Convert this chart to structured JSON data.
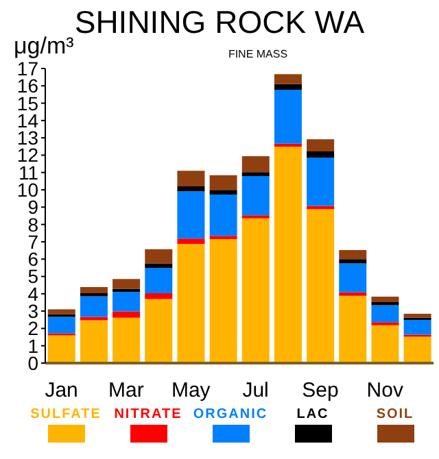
{
  "chart_data": {
    "type": "bar",
    "title": "SHINING ROCK WA",
    "subtitle": "FINE MASS",
    "ylabel": "μg/m³",
    "categories": [
      "Jan",
      null,
      "Mar",
      null,
      "May",
      null,
      "Jul",
      null,
      "Sep",
      null,
      "Nov",
      null
    ],
    "stacked": true,
    "series": [
      {
        "name": "SULFATE",
        "color": "#ffb400",
        "values": [
          1.6,
          2.47,
          2.62,
          3.7,
          6.88,
          7.16,
          8.35,
          12.48,
          8.89,
          3.88,
          2.18,
          1.52
        ]
      },
      {
        "name": "NITRATE",
        "color": "#ff0000",
        "values": [
          0.12,
          0.2,
          0.36,
          0.33,
          0.31,
          0.18,
          0.18,
          0.18,
          0.18,
          0.2,
          0.18,
          0.12
        ]
      },
      {
        "name": "ORGANIC",
        "color": "#0080ff",
        "values": [
          0.95,
          1.18,
          1.13,
          1.47,
          2.72,
          2.39,
          2.26,
          3.11,
          2.79,
          1.67,
          0.98,
          0.85
        ]
      },
      {
        "name": "LAC",
        "color": "#000000",
        "values": [
          0.15,
          0.18,
          0.18,
          0.25,
          0.29,
          0.26,
          0.23,
          0.33,
          0.36,
          0.25,
          0.18,
          0.13
        ]
      },
      {
        "name": "SOIL",
        "color": "#904010",
        "values": [
          0.28,
          0.36,
          0.56,
          0.82,
          0.9,
          0.85,
          0.92,
          0.57,
          0.7,
          0.52,
          0.31,
          0.23
        ]
      }
    ],
    "ylim": [
      0,
      17
    ],
    "yticks": [
      0,
      1,
      2,
      3,
      4,
      5,
      6,
      7,
      8,
      9,
      10,
      11,
      12,
      13,
      14,
      15,
      16,
      17
    ],
    "grid": false,
    "legend": "bottom"
  }
}
